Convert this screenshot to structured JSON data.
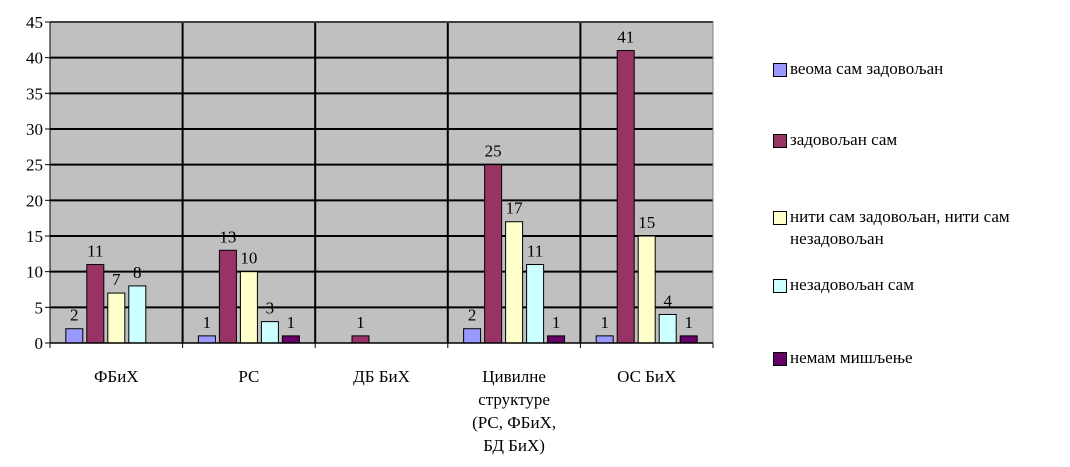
{
  "chart_data": {
    "type": "bar",
    "title": "",
    "xlabel": "",
    "ylabel": "",
    "ylim": [
      0,
      45
    ],
    "yticks": [
      0,
      5,
      10,
      15,
      20,
      25,
      30,
      35,
      40,
      45
    ],
    "grid": true,
    "legend_position": "right",
    "plot_background": "#c0c0c0",
    "categories": [
      [
        "ФБиХ"
      ],
      [
        "РС"
      ],
      [
        "ДБ БиХ"
      ],
      [
        "Цивилне",
        "структуре",
        "(РС, ФБиХ,",
        "БД БиХ)"
      ],
      [
        "ОС БиХ"
      ]
    ],
    "series": [
      {
        "name": "веома сам задовољан",
        "color": "#9999ff",
        "values": [
          2,
          1,
          null,
          2,
          1
        ]
      },
      {
        "name": "задовољан сам",
        "color": "#993366",
        "values": [
          11,
          13,
          1,
          25,
          41
        ]
      },
      {
        "name": "нити сам задовољан, нити сам незадовољан",
        "color": "#ffffcc",
        "values": [
          7,
          10,
          null,
          17,
          15
        ]
      },
      {
        "name": "незадовољан сам",
        "color": "#ccffff",
        "values": [
          8,
          3,
          null,
          11,
          4
        ]
      },
      {
        "name": "немам мишљење",
        "color": "#660066",
        "values": [
          null,
          1,
          null,
          1,
          1
        ]
      }
    ]
  }
}
